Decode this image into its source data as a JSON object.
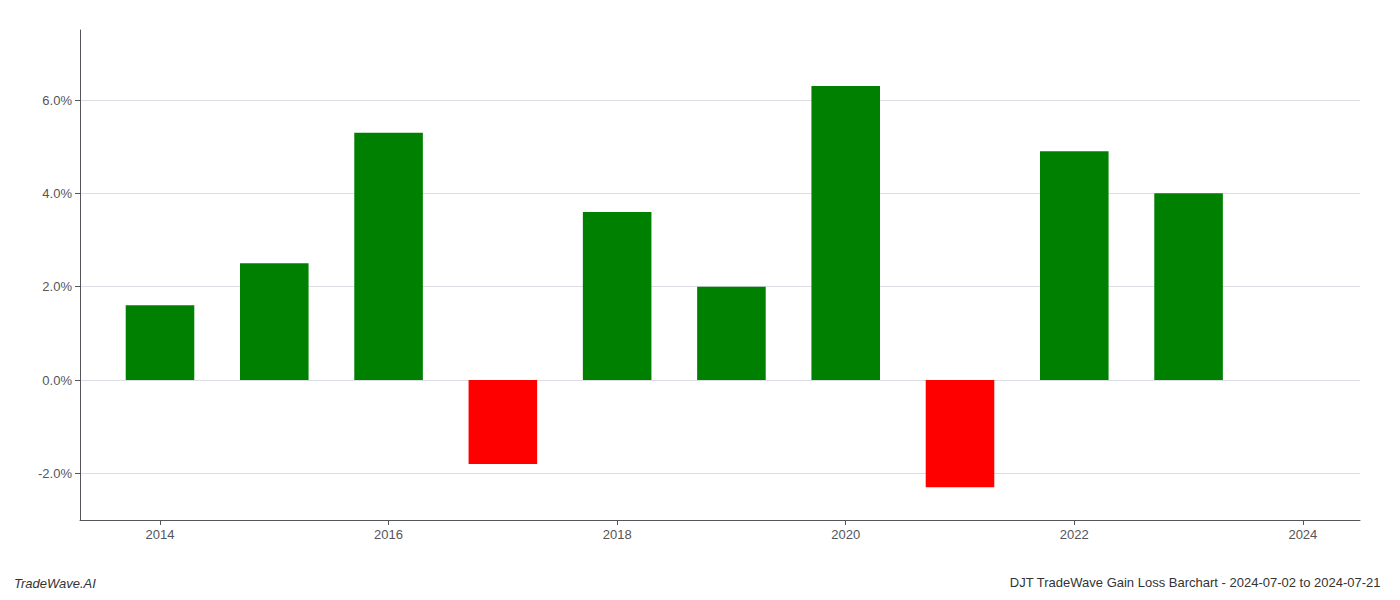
{
  "chart_data": {
    "type": "bar",
    "title": "DJT TradeWave Gain Loss Barchart - 2024-07-02 to 2024-07-21",
    "annotations": [
      "TradeWave.AI"
    ],
    "x": [
      2014,
      2015,
      2016,
      2017,
      2018,
      2019,
      2020,
      2021,
      2022,
      2023
    ],
    "values": [
      0.016,
      0.025,
      0.053,
      -0.018,
      0.036,
      0.02,
      0.063,
      -0.023,
      0.049,
      0.04
    ],
    "colors": [
      "#008000",
      "#008000",
      "#008000",
      "#ff0000",
      "#008000",
      "#008000",
      "#008000",
      "#ff0000",
      "#008000",
      "#008000"
    ],
    "xlim": [
      2013.3,
      2024.5
    ],
    "xticks": [
      2014,
      2016,
      2018,
      2020,
      2022,
      2024
    ],
    "ylim": [
      -0.03,
      0.075
    ],
    "yticks": [
      {
        "value": -0.02,
        "label": "-2.0%"
      },
      {
        "value": 0.0,
        "label": "0.0%"
      },
      {
        "value": 0.02,
        "label": "2.0%"
      },
      {
        "value": 0.04,
        "label": "4.0%"
      },
      {
        "value": 0.06,
        "label": "6.0%"
      }
    ],
    "grid": true
  }
}
